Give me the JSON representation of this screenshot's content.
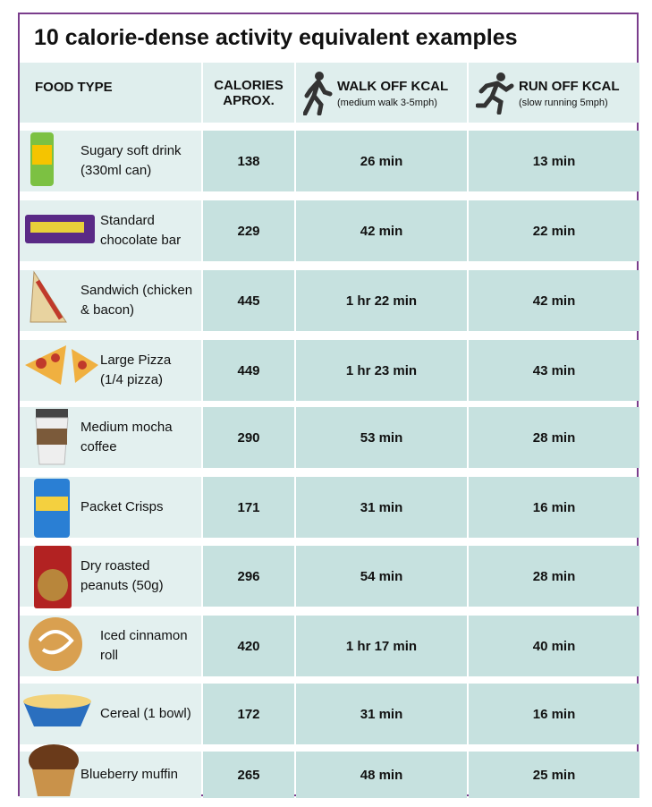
{
  "title": "10 calorie-dense activity equivalent examples",
  "table": {
    "headers": [
      {
        "label": "FOOD TYPE"
      },
      {
        "label": "CALORIES APROX."
      },
      {
        "label": "WALK OFF KCAL",
        "note": "(medium walk 3-5mph)"
      },
      {
        "label": "RUN OFF KCAL",
        "note": "(slow running 5mph)"
      }
    ],
    "rows": [
      [
        "Sugary soft drink (330ml can)",
        "138",
        "26 min",
        "13 min"
      ],
      [
        "Standard chocolate bar",
        "229",
        "42 min",
        "22 min"
      ],
      [
        "Sandwich (chicken & bacon)",
        "445",
        "1 hr 22 min",
        "42 min"
      ],
      [
        "Large Pizza (1/4 pizza)",
        "449",
        "1 hr 23 min",
        "43 min"
      ],
      [
        "Medium mocha coffee",
        "290",
        "53 min",
        "28 min"
      ],
      [
        "Packet Crisps",
        "171",
        "31 min",
        "16 min"
      ],
      [
        "Dry roasted peanuts (50g)",
        "296",
        "54 min",
        "28 min"
      ],
      [
        "Iced cinnamon roll",
        "420",
        "1 hr 17 min",
        "40 min"
      ],
      [
        "Cereal (1 bowl)",
        "172",
        "31 min",
        "16 min"
      ],
      [
        "Blueberry muffin",
        "265",
        "48 min",
        "25 min"
      ]
    ]
  }
}
